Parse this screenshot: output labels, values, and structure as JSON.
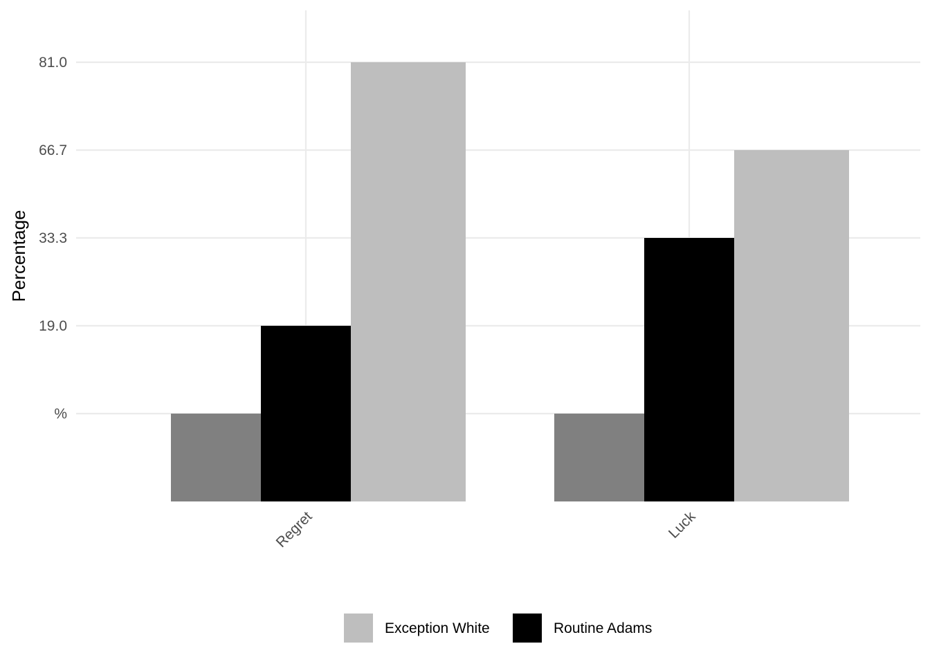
{
  "chart_data": {
    "type": "bar",
    "title": "",
    "xlabel": "",
    "ylabel": "Percentage",
    "categories": [
      "Regret",
      "Luck"
    ],
    "y_ticks": [
      {
        "label": "%",
        "value": 0
      },
      {
        "label": "19.0",
        "value": 19.0
      },
      {
        "label": "33.3",
        "value": 33.3
      },
      {
        "label": "66.7",
        "value": 66.7
      },
      {
        "label": "81.0",
        "value": 81.0
      }
    ],
    "series": [
      {
        "color": "#808080",
        "values": [
          0,
          0
        ]
      },
      {
        "name": "Routine Adams",
        "color": "#000000",
        "values": [
          19.0,
          33.3
        ]
      },
      {
        "name": "Exception White",
        "color": "#bebebe",
        "values": [
          81.0,
          66.7
        ]
      }
    ],
    "bar_base_value": -19.0,
    "legend": {
      "position": "bottom",
      "entries": [
        {
          "label": "Exception White",
          "color": "#bebebe"
        },
        {
          "label": "Routine Adams",
          "color": "#000000"
        }
      ]
    },
    "grid": true
  }
}
